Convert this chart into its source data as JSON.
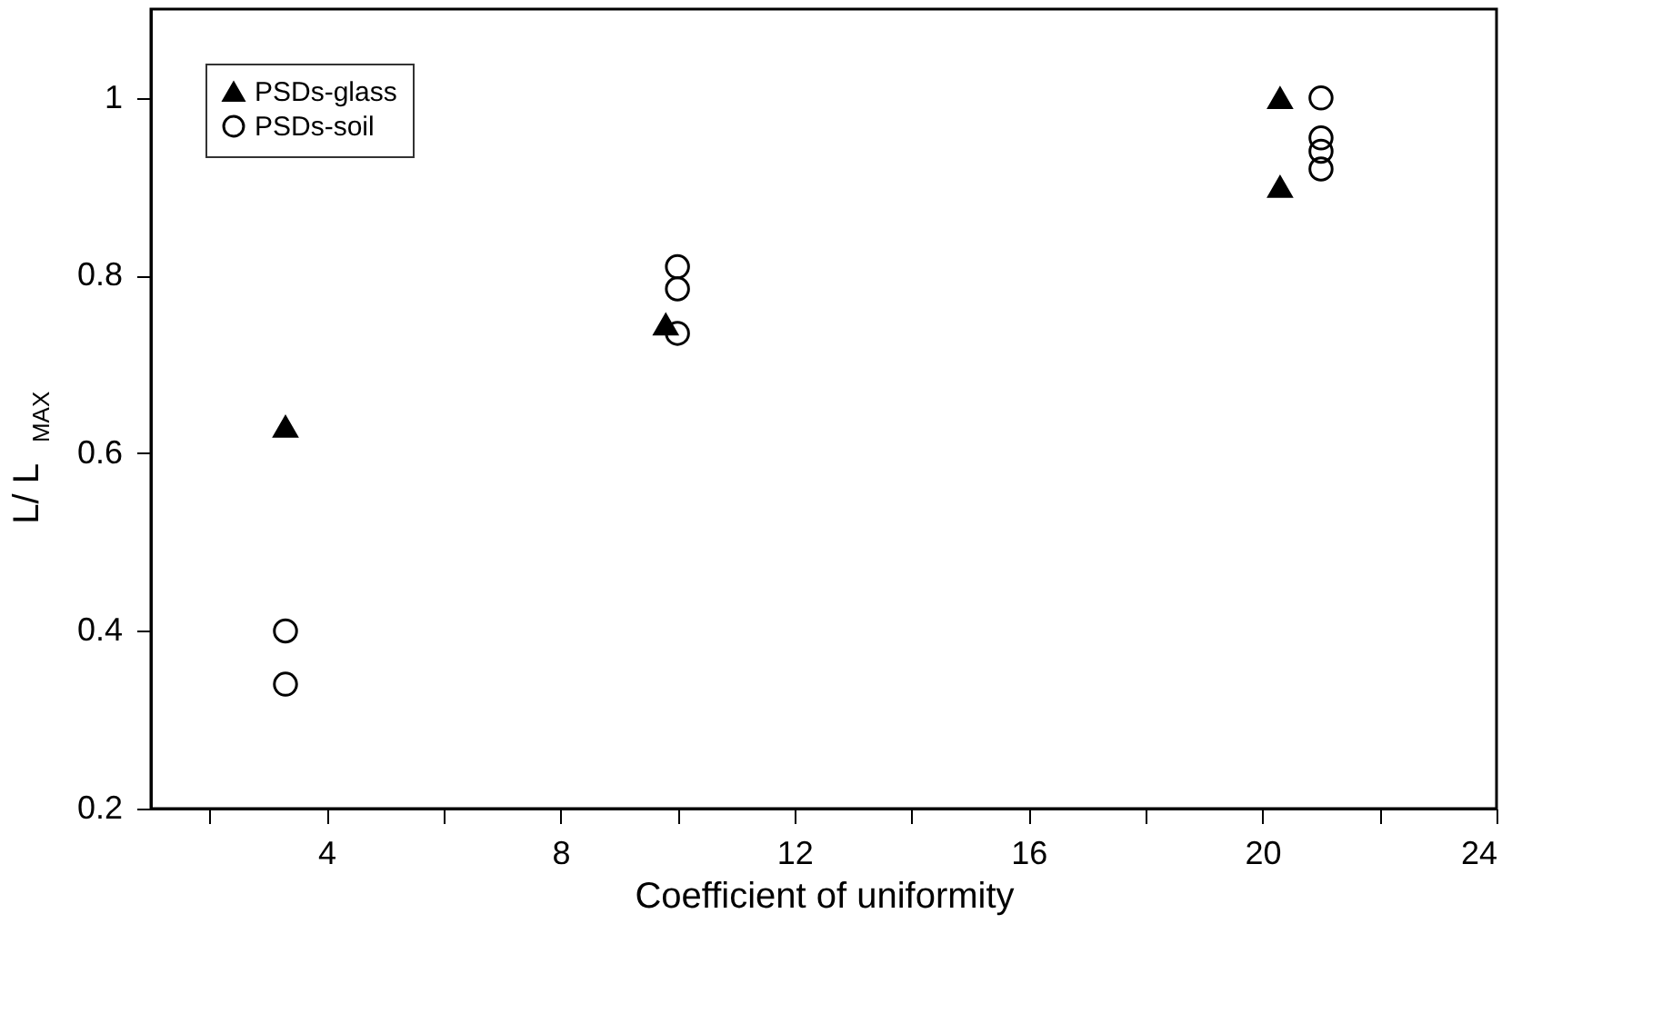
{
  "chart_data": {
    "type": "scatter",
    "xlabel": "Coefficient of uniformity",
    "ylabel": "L/ L$_{MAX}$",
    "xlim": [
      1,
      24
    ],
    "xticks": [
      {
        "value": 2,
        "label": null
      },
      4,
      {
        "value": 6,
        "label": null
      },
      8,
      {
        "value": 10,
        "label": null
      },
      12,
      {
        "value": 14,
        "label": null
      },
      16,
      {
        "value": 18,
        "label": null
      },
      20,
      {
        "value": 22,
        "label": null
      },
      24
    ],
    "ylim": [
      0.2,
      1.1
    ],
    "yticks": [
      0.2,
      0.4,
      0.6,
      0.8,
      1
    ],
    "grid": false,
    "legend": "top left",
    "series": [
      {
        "name": "PSDs-glass",
        "color": "#000000",
        "marker": "triangle",
        "x": [
          3.3,
          9.8,
          20.3,
          20.3
        ],
        "values": [
          0.63,
          0.745,
          1.0,
          0.9
        ]
      },
      {
        "name": "PSDs-soil",
        "color": "#000000",
        "marker": "circle",
        "x": [
          3.3,
          3.3,
          10,
          10,
          10,
          21,
          21,
          21,
          21
        ],
        "values": [
          0.4,
          0.34,
          0.81,
          0.785,
          0.735,
          1.0,
          0.955,
          0.94,
          0.92
        ]
      }
    ]
  }
}
